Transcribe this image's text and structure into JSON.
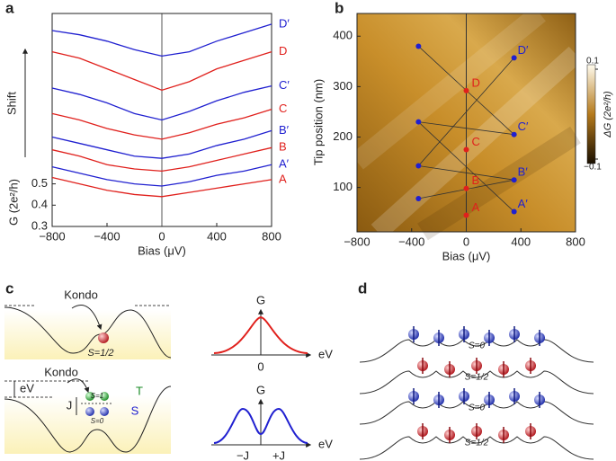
{
  "panels": {
    "a": "a",
    "b": "b",
    "c": "c",
    "d": "d"
  },
  "chart_data": [
    {
      "type": "line",
      "annotation": "Shift",
      "xlabel": "Bias (μV)",
      "ylabel": "G (2e²/h)",
      "x": [
        -800,
        -600,
        -400,
        -200,
        0,
        200,
        400,
        600,
        800
      ],
      "xlim": [
        -800,
        800
      ],
      "xticks": [
        {
          "value": -800,
          "label": "−800"
        },
        {
          "value": -400,
          "label": "−400"
        },
        0,
        400,
        800
      ],
      "ylim": [
        0.3,
        1.3
      ],
      "yticks": [
        0.3,
        0.4,
        0.5
      ],
      "series": [
        {
          "name": "A",
          "color": "#e0201c",
          "values": [
            0.53,
            0.5,
            0.47,
            0.45,
            0.44,
            0.46,
            0.48,
            0.5,
            0.52
          ]
        },
        {
          "name": "A′",
          "color": "#2020d0",
          "values": [
            0.58,
            0.55,
            0.52,
            0.5,
            0.49,
            0.51,
            0.54,
            0.56,
            0.59
          ]
        },
        {
          "name": "B",
          "color": "#e0201c",
          "values": [
            0.66,
            0.63,
            0.59,
            0.57,
            0.56,
            0.58,
            0.61,
            0.64,
            0.67
          ]
        },
        {
          "name": "B′",
          "color": "#2020d0",
          "values": [
            0.72,
            0.69,
            0.66,
            0.63,
            0.62,
            0.64,
            0.68,
            0.71,
            0.75
          ]
        },
        {
          "name": "C",
          "color": "#e0201c",
          "values": [
            0.83,
            0.8,
            0.76,
            0.73,
            0.71,
            0.74,
            0.78,
            0.81,
            0.85
          ]
        },
        {
          "name": "C′",
          "color": "#2020d0",
          "values": [
            0.95,
            0.92,
            0.88,
            0.83,
            0.8,
            0.84,
            0.89,
            0.93,
            0.96
          ]
        },
        {
          "name": "D",
          "color": "#e0201c",
          "values": [
            1.12,
            1.09,
            1.04,
            0.99,
            0.94,
            0.98,
            1.04,
            1.08,
            1.12
          ]
        },
        {
          "name": "D′",
          "color": "#2020d0",
          "values": [
            1.22,
            1.2,
            1.17,
            1.13,
            1.1,
            1.12,
            1.17,
            1.21,
            1.25
          ]
        }
      ]
    },
    {
      "type": "scatter",
      "xlabel": "Bias (μV)",
      "ylabel": "Tip position (nm)",
      "xlim": [
        -800,
        800
      ],
      "xticks": [
        {
          "value": -800,
          "label": "−800"
        },
        {
          "value": -400,
          "label": "−400"
        },
        0,
        400,
        800
      ],
      "ylim": [
        12,
        445
      ],
      "yticks": [
        100,
        200,
        300,
        400
      ],
      "series": [
        {
          "color": "#2020d0",
          "x": [
            350,
            350,
            350,
            350,
            -350,
            -350,
            -350,
            -350
          ],
          "values": [
            52,
            115,
            205,
            357,
            78,
            143,
            230,
            380
          ],
          "labels": [
            "A′",
            "B′",
            "C′",
            "D′",
            null,
            null,
            null,
            null
          ]
        },
        {
          "color": "#e0201c",
          "x": [
            0,
            0,
            0,
            0
          ],
          "values": [
            45,
            98,
            175,
            292
          ],
          "labels": [
            "A",
            "B",
            "C",
            "D"
          ]
        }
      ],
      "colorbar": {
        "label": "ΔG (2e²/h)",
        "clim": [
          -0.11,
          0.11
        ],
        "ticks": [
          0.1,
          {
            "value": -0.1,
            "label": "−0.1"
          }
        ]
      }
    }
  ],
  "panel_c": {
    "top": {
      "kondo": "Kondo",
      "spin": "S=1/2",
      "axis_y": "G",
      "axis_x": "eV",
      "tick": "0"
    },
    "bottom": {
      "kondo": "Kondo",
      "ev": "eV",
      "j": "J",
      "triplet_spin": "S=1",
      "triplet": "T",
      "singlet_spin": "S=0",
      "singlet": "S",
      "axis_y": "G",
      "axis_x": "eV",
      "ticks": [
        "−J",
        "+J"
      ]
    }
  },
  "panel_d": {
    "levels": [
      "S=0",
      "S=1/2",
      "S=0",
      "S=1/2"
    ]
  }
}
